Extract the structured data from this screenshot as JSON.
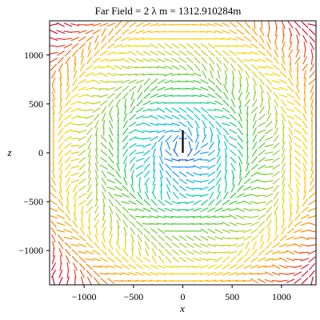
{
  "chart_data": {
    "type": "field",
    "title": "Far Field = 2 λ m = 1312.910284m",
    "xlabel": "x",
    "ylabel": "z",
    "xlim": [
      -1350,
      1350
    ],
    "ylim": [
      -1350,
      1350
    ],
    "xticks": [
      -1000,
      -500,
      0,
      500,
      1000
    ],
    "yticks": [
      -1000,
      -500,
      0,
      500,
      1000
    ],
    "xtick_labels": [
      "−1000",
      "−500",
      "0",
      "500",
      "1000"
    ],
    "ytick_labels": [
      "−1000",
      "−500",
      "0",
      "500",
      "1000"
    ],
    "grid": false,
    "legend": "none",
    "field_grid": {
      "x_from": -1310,
      "x_to": 1310,
      "z_from": -1310,
      "z_to": 1310,
      "count": 37
    },
    "source_dipole": {
      "x": 0,
      "z_from": 0,
      "z_to": 230
    },
    "colormap": [
      "#00008b",
      "#1e90ff",
      "#00ced1",
      "#32cd32",
      "#9acd32",
      "#ffd700",
      "#ff8c00",
      "#dc143c",
      "#8b0000"
    ]
  }
}
